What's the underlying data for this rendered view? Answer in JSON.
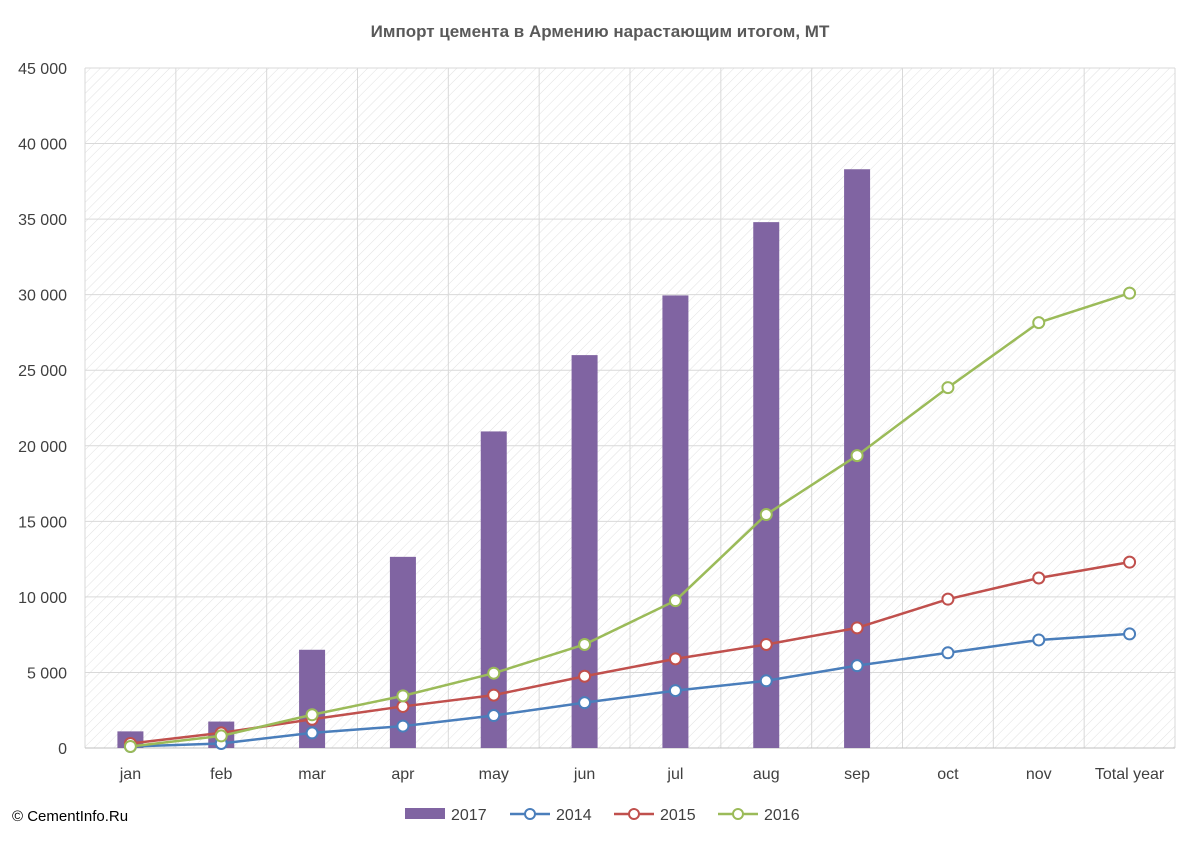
{
  "copyright": "© CementInfo.Ru",
  "chart_data": {
    "type": "bar+line",
    "title": "Импорт цемента в Армению нарастающим итогом, МТ",
    "xlabel": "",
    "ylabel": "",
    "categories": [
      "jan",
      "feb",
      "mar",
      "apr",
      "may",
      "jun",
      "jul",
      "aug",
      "sep",
      "oct",
      "nov",
      "Total year"
    ],
    "ylim": [
      0,
      45000
    ],
    "yticks": [
      0,
      5000,
      10000,
      15000,
      20000,
      25000,
      30000,
      35000,
      40000,
      45000
    ],
    "ytick_labels": [
      "0",
      "5 000",
      "10 000",
      "15 000",
      "20 000",
      "25 000",
      "30 000",
      "35 000",
      "40 000",
      "45 000"
    ],
    "grid": true,
    "legend_position": "bottom",
    "series": [
      {
        "name": "2017",
        "kind": "bar",
        "color": "#8064a2",
        "values": [
          1100,
          1750,
          6500,
          12650,
          20950,
          26000,
          29950,
          34800,
          38300,
          null,
          null,
          null
        ]
      },
      {
        "name": "2014",
        "kind": "line",
        "color": "#4a7ebb",
        "values": [
          100,
          300,
          1000,
          1450,
          2150,
          3000,
          3800,
          4450,
          5450,
          6300,
          7150,
          7550
        ]
      },
      {
        "name": "2015",
        "kind": "line",
        "color": "#c0504d",
        "values": [
          300,
          1000,
          1900,
          2750,
          3500,
          4750,
          5900,
          6850,
          7950,
          9850,
          11250,
          12300
        ]
      },
      {
        "name": "2016",
        "kind": "line",
        "color": "#9bbb59",
        "values": [
          100,
          800,
          2200,
          3450,
          4950,
          6850,
          9750,
          15450,
          19350,
          23850,
          28150,
          30100
        ]
      }
    ]
  }
}
